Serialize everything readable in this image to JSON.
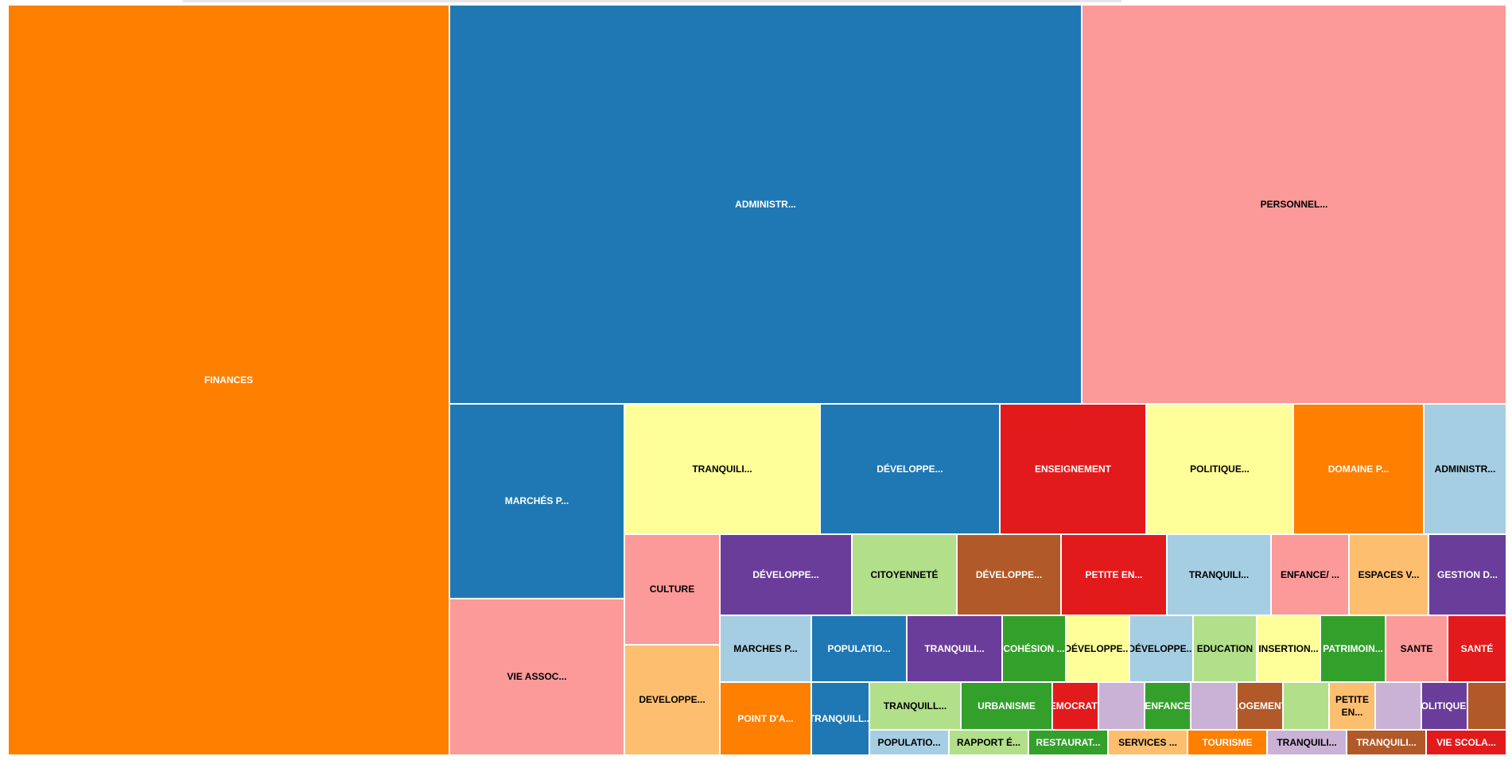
{
  "chart_data": {
    "type": "treemap",
    "title": "",
    "palette": {
      "orange": "#ff7f00",
      "blue": "#1f78b4",
      "pink": "#fb9a99",
      "yellow": "#ffff99",
      "red": "#e31a1c",
      "light_blue": "#a6cee3",
      "purple": "#6a3d9a",
      "light_green": "#b2df8a",
      "brown": "#b15928",
      "green": "#33a02c",
      "light_orange": "#fdbf6f",
      "lavender": "#cab2d6"
    },
    "cells": [
      {
        "label": "FINANCES",
        "value": 35.9,
        "color": "#ff7f00"
      },
      {
        "label": "ADMINISTR...",
        "value": 26.6,
        "color": "#1f78b4"
      },
      {
        "label": "PERSONNEL...",
        "value": 17.5,
        "color": "#fb9a99"
      },
      {
        "label": "MARCHÉS P...",
        "value": 3.55,
        "color": "#1f78b4"
      },
      {
        "label": "VIE ASSOC...",
        "value": 2.85,
        "color": "#fb9a99"
      },
      {
        "label": "TRANQUILI...",
        "value": 2.7,
        "color": "#ffff99"
      },
      {
        "label": "DÉVELOPPE...",
        "value": 2.5,
        "color": "#1f78b4"
      },
      {
        "label": "ENSEIGNEMENT",
        "value": 2.0,
        "color": "#e31a1c"
      },
      {
        "label": "POLITIQUE...",
        "value": 2.0,
        "color": "#ffff99"
      },
      {
        "label": "DOMAINE P...",
        "value": 1.85,
        "color": "#ff7f00"
      },
      {
        "label": "ADMINISTR...",
        "value": 1.15,
        "color": "#a6cee3"
      },
      {
        "label": "CULTURE",
        "value": 1.0,
        "color": "#fb9a99"
      },
      {
        "label": "DEVELOPPE...",
        "value": 0.9,
        "color": "#fdbf6f"
      },
      {
        "label": "DÉVELOPPE...",
        "value": 1.1,
        "color": "#6a3d9a"
      },
      {
        "label": "CITOYENNETÉ",
        "value": 0.85,
        "color": "#b2df8a"
      },
      {
        "label": "DÉVELOPPE...",
        "value": 0.85,
        "color": "#b15928"
      },
      {
        "label": "PETITE EN...",
        "value": 0.85,
        "color": "#e31a1c"
      },
      {
        "label": "TRANQUILI...",
        "value": 0.85,
        "color": "#a6cee3"
      },
      {
        "label": "ENFANCE/ ...",
        "value": 0.65,
        "color": "#fb9a99"
      },
      {
        "label": "ESPACES V...",
        "value": 0.65,
        "color": "#fdbf6f"
      },
      {
        "label": "GESTION D...",
        "value": 0.65,
        "color": "#6a3d9a"
      },
      {
        "label": "MARCHES P...",
        "value": 0.6,
        "color": "#a6cee3"
      },
      {
        "label": "POPULATIO...",
        "value": 0.6,
        "color": "#1f78b4"
      },
      {
        "label": "TRANQUILI...",
        "value": 0.6,
        "color": "#6a3d9a"
      },
      {
        "label": "COHÉSION ...",
        "value": 0.4,
        "color": "#33a02c"
      },
      {
        "label": "DÉVELOPPE...",
        "value": 0.4,
        "color": "#ffff99"
      },
      {
        "label": "DÉVELOPPE...",
        "value": 0.4,
        "color": "#a6cee3"
      },
      {
        "label": "EDUCATION",
        "value": 0.4,
        "color": "#b2df8a"
      },
      {
        "label": "INSERTION...",
        "value": 0.4,
        "color": "#ffff99"
      },
      {
        "label": "PATRIMOIN...",
        "value": 0.4,
        "color": "#33a02c"
      },
      {
        "label": "SANTE",
        "value": 0.4,
        "color": "#fb9a99"
      },
      {
        "label": "SANTÉ",
        "value": 0.4,
        "color": "#e31a1c"
      },
      {
        "label": "POINT D'A...",
        "value": 0.5,
        "color": "#ff7f00"
      },
      {
        "label": "TRANQUILL...",
        "value": 0.33,
        "color": "#1f78b4"
      },
      {
        "label": "TRANQUILL...",
        "value": 0.3,
        "color": "#b2df8a"
      },
      {
        "label": "URBANISME",
        "value": 0.3,
        "color": "#33a02c"
      },
      {
        "label": "DEMOCRATI...",
        "value": 0.15,
        "color": "#e31a1c"
      },
      {
        "label": "",
        "value": 0.15,
        "color": "#cab2d6"
      },
      {
        "label": "ENFANCE",
        "value": 0.15,
        "color": "#33a02c"
      },
      {
        "label": "",
        "value": 0.15,
        "color": "#cab2d6"
      },
      {
        "label": "LOGEMENT",
        "value": 0.15,
        "color": "#b15928"
      },
      {
        "label": "",
        "value": 0.15,
        "color": "#b2df8a"
      },
      {
        "label": "PETITE EN...",
        "value": 0.15,
        "color": "#fdbf6f"
      },
      {
        "label": "",
        "value": 0.15,
        "color": "#cab2d6"
      },
      {
        "label": "POLITIQUE...",
        "value": 0.15,
        "color": "#6a3d9a"
      },
      {
        "label": "",
        "value": 0.15,
        "color": "#b15928"
      },
      {
        "label": "POPULATIO...",
        "value": 0.1,
        "color": "#a6cee3"
      },
      {
        "label": "RAPPORT É...",
        "value": 0.1,
        "color": "#b2df8a"
      },
      {
        "label": "RESTAURAT...",
        "value": 0.1,
        "color": "#33a02c"
      },
      {
        "label": "SERVICES ...",
        "value": 0.1,
        "color": "#fdbf6f"
      },
      {
        "label": "TOURISME",
        "value": 0.1,
        "color": "#ff7f00"
      },
      {
        "label": "TRANQUILI...",
        "value": 0.1,
        "color": "#cab2d6"
      },
      {
        "label": "TRANQUILI...",
        "value": 0.1,
        "color": "#b15928"
      },
      {
        "label": "VIE SCOLA...",
        "value": 0.1,
        "color": "#e31a1c"
      }
    ]
  }
}
